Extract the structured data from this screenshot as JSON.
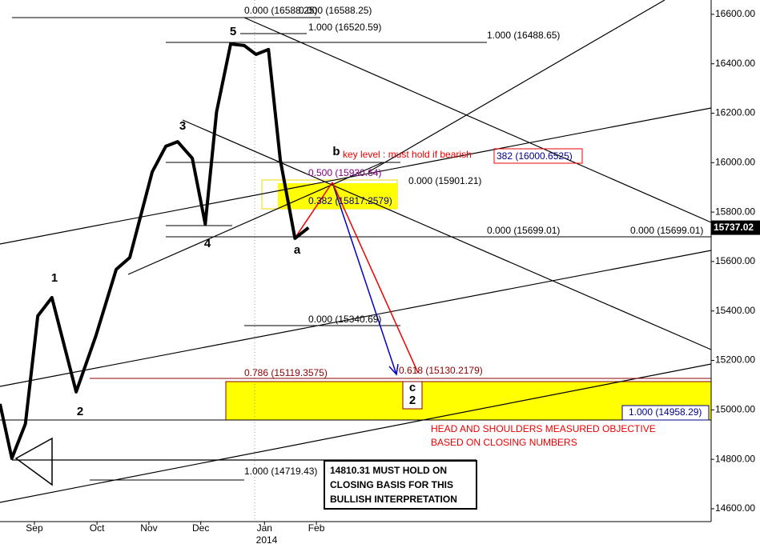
{
  "chart_data": {
    "type": "line",
    "color": "#000000",
    "x": [
      -0.61,
      -0.4,
      -0.16,
      0.06,
      0.31,
      0.74,
      1.09,
      1.45,
      1.69,
      2.09,
      2.33,
      2.54,
      2.8,
      3.03,
      3.23,
      3.48,
      3.72,
      3.93,
      4.15,
      4.36,
      4.62,
      4.86
    ],
    "values": [
      15024,
      14804,
      14943,
      15380,
      15454,
      15073,
      15299,
      15568,
      15616,
      15963,
      16066,
      16085,
      16018,
      15752,
      16205,
      16480,
      16474,
      16438,
      16458,
      16011,
      15694,
      15737
    ],
    "xlim": [
      -0.61,
      12.0
    ],
    "xticks": [
      {
        "value": 0,
        "label": "Sep"
      },
      {
        "value": 1.11,
        "label": "Oct"
      },
      {
        "value": 2.03,
        "label": "Nov"
      },
      {
        "value": 2.95,
        "label": "Dec"
      },
      {
        "value": 4.08,
        "label": "Jan"
      },
      {
        "value": 5,
        "label": "Feb"
      }
    ],
    "year_label": "2014",
    "ylim": [
      14548,
      16658
    ],
    "yticks": [
      {
        "value": 14600,
        "label": "14600.00"
      },
      {
        "value": 14800,
        "label": "14800.00"
      },
      {
        "value": 15000,
        "label": "15000.00"
      },
      {
        "value": 15200,
        "label": "15200.00"
      },
      {
        "value": 15400,
        "label": "15400.00"
      },
      {
        "value": 15600,
        "label": "15600.00"
      },
      {
        "value": 15800,
        "label": "15800.00"
      },
      {
        "value": 16000,
        "label": "16000.00"
      },
      {
        "value": 16200,
        "label": "16200.00"
      },
      {
        "value": 16400,
        "label": "16400.00"
      },
      {
        "value": 16600,
        "label": "16600.00"
      }
    ],
    "last_price": 15737.02,
    "wave_labels": [
      "1",
      "2",
      "3",
      "4",
      "5",
      "a",
      "b",
      "c",
      "2"
    ],
    "annotations": [
      "0.000 (16588.25)",
      "0.000 (16588.25)",
      "1.000 (16520.59)",
      "1.000 (16488.65)",
      "key level : must hold if bearish",
      "382 (16000.6525)",
      "0.500 (15930.64)",
      "0.000 (15901.21)",
      "0.382 (15817.2579)",
      "0.000 (15699.01)",
      "0.000 (15699.01)",
      "0.000 (15340.69)",
      "0.786 (15119.3575)",
      "0.618 (15130.2179)",
      "1.000 (14958.29)",
      "HEAD AND SHOULDERS MEASURED OBJECTIVE",
      "BASED ON CLOSING NUMBERS",
      "1.000 (14719.43)",
      "14810.31 MUST HOLD ON",
      "CLOSING BASIS FOR THIS",
      "BULLISH INTERPRETATION"
    ]
  }
}
